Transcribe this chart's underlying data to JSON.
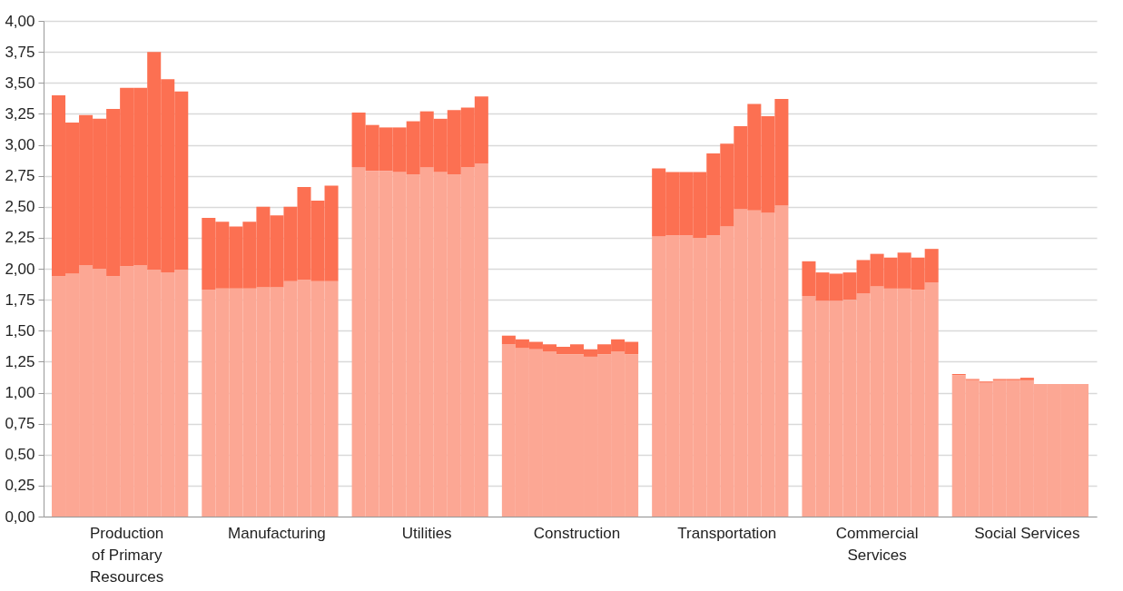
{
  "chart_data": {
    "type": "bar",
    "stacked": true,
    "categories": [
      null,
      null,
      null,
      null,
      null,
      "Production of Primary Resources",
      null,
      null,
      null,
      null,
      null,
      null,
      null,
      null,
      null,
      null,
      "Manufacturing",
      null,
      null,
      null,
      null,
      null,
      null,
      null,
      null,
      null,
      null,
      "Utilities",
      null,
      null,
      null,
      null,
      null,
      null,
      null,
      null,
      null,
      null,
      "Construction",
      null,
      null,
      null,
      null,
      null,
      null,
      null,
      null,
      null,
      null,
      "Transportation",
      null,
      null,
      null,
      null,
      null,
      null,
      null,
      null,
      null,
      null,
      "Commercial Services",
      null,
      null,
      null,
      null,
      null,
      null,
      null,
      null,
      null,
      null,
      "Social Services",
      null,
      null,
      null,
      null
    ],
    "series": [
      {
        "color": "#fca794",
        "values": [
          1.94,
          1.96,
          2.03,
          2.0,
          1.94,
          2.02,
          2.03,
          1.99,
          1.97,
          1.99,
          null,
          1.83,
          1.84,
          1.84,
          1.84,
          1.85,
          1.85,
          1.9,
          1.91,
          1.9,
          1.9,
          null,
          2.82,
          2.79,
          2.79,
          2.78,
          2.76,
          2.82,
          2.78,
          2.76,
          2.82,
          2.85,
          null,
          1.39,
          1.36,
          1.35,
          1.33,
          1.31,
          1.31,
          1.29,
          1.31,
          1.33,
          1.31,
          null,
          2.26,
          2.27,
          2.27,
          2.25,
          2.27,
          2.34,
          2.48,
          2.47,
          2.45,
          2.51,
          null,
          1.78,
          1.74,
          1.74,
          1.75,
          1.8,
          1.86,
          1.84,
          1.84,
          1.83,
          1.89,
          null,
          1.14,
          1.1,
          1.08,
          1.1,
          1.1,
          1.1,
          1.07,
          1.07,
          1.07,
          1.07
        ]
      },
      {
        "color": "#fc7052",
        "values": [
          1.46,
          1.22,
          1.21,
          1.21,
          1.35,
          1.44,
          1.43,
          1.76,
          1.56,
          1.44,
          null,
          0.58,
          0.54,
          0.5,
          0.54,
          0.65,
          0.58,
          0.6,
          0.75,
          0.65,
          0.77,
          null,
          0.44,
          0.37,
          0.35,
          0.36,
          0.43,
          0.45,
          0.43,
          0.52,
          0.48,
          0.54,
          null,
          0.07,
          0.07,
          0.06,
          0.06,
          0.06,
          0.08,
          0.06,
          0.08,
          0.1,
          0.1,
          null,
          0.55,
          0.51,
          0.51,
          0.53,
          0.66,
          0.67,
          0.67,
          0.86,
          0.78,
          0.86,
          null,
          0.28,
          0.23,
          0.22,
          0.22,
          0.27,
          0.26,
          0.25,
          0.29,
          0.26,
          0.27,
          null,
          0.01,
          0.01,
          0.01,
          0.01,
          0.01,
          0.02,
          0,
          0,
          0,
          0
        ]
      }
    ],
    "ylim": [
      0,
      4
    ],
    "yticks": [
      {
        "value": 0,
        "label": "0,00"
      },
      {
        "value": 0.25,
        "label": "0,25"
      },
      {
        "value": 0.5,
        "label": "0,50"
      },
      {
        "value": 0.75,
        "label": "0,75"
      },
      {
        "value": 1,
        "label": "1,00"
      },
      {
        "value": 1.25,
        "label": "1,25"
      },
      {
        "value": 1.5,
        "label": "1,50"
      },
      {
        "value": 1.75,
        "label": "1,75"
      },
      {
        "value": 2,
        "label": "2,00"
      },
      {
        "value": 2.25,
        "label": "2,25"
      },
      {
        "value": 2.5,
        "label": "2,50"
      },
      {
        "value": 2.75,
        "label": "2,75"
      },
      {
        "value": 3,
        "label": "3,00"
      },
      {
        "value": 3.25,
        "label": "3,25"
      },
      {
        "value": 3.5,
        "label": "3,50"
      },
      {
        "value": 3.75,
        "label": "3,75"
      },
      {
        "value": 4,
        "label": "4,00"
      }
    ],
    "grid": "y"
  }
}
